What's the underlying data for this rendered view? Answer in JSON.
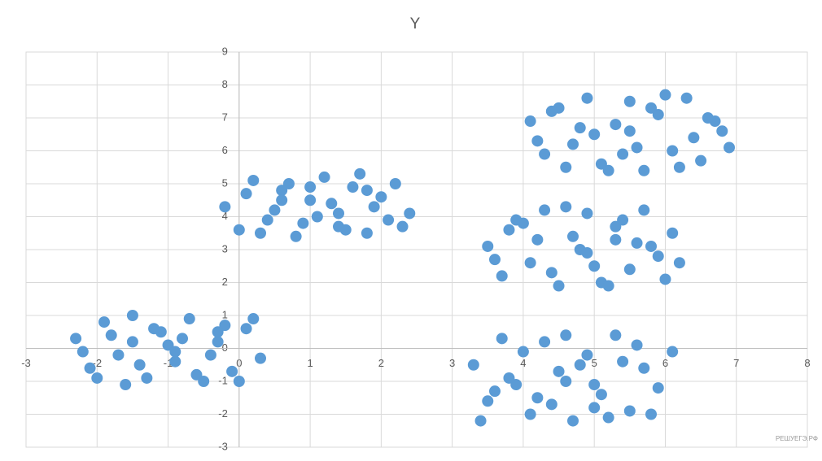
{
  "chart_data": {
    "type": "scatter",
    "title": "Y",
    "color": "#5b9bd5",
    "grid": true,
    "watermark": "РЕШУЕГЭ.РФ",
    "xlim": [
      -3,
      8
    ],
    "xticks": [
      -3,
      -2,
      -1,
      0,
      1,
      2,
      3,
      4,
      5,
      6,
      7,
      8
    ],
    "ylim": [
      -3,
      9
    ],
    "yticks": [
      -3,
      -2,
      -1,
      0,
      1,
      2,
      3,
      4,
      5,
      6,
      7,
      8,
      9
    ],
    "x": [
      -2.3,
      -2.1,
      -1.9,
      -1.7,
      -1.5,
      -1.3,
      -1.1,
      -0.9,
      -0.7,
      -0.5,
      -0.3,
      -0.1,
      0.1,
      0.3,
      -2.2,
      -1.8,
      -1.4,
      -1.0,
      -0.6,
      -0.2,
      0.2,
      -2.0,
      -1.6,
      -1.2,
      -0.8,
      -0.4,
      0.0,
      -1.5,
      -0.9,
      -0.3,
      -0.2,
      0.0,
      0.2,
      0.4,
      0.6,
      0.8,
      1.0,
      1.2,
      1.4,
      1.6,
      1.8,
      2.0,
      2.2,
      2.4,
      0.1,
      0.5,
      0.9,
      1.3,
      1.7,
      2.1,
      0.3,
      0.7,
      1.1,
      1.5,
      1.9,
      2.3,
      0.6,
      1.0,
      1.4,
      1.8,
      4.1,
      4.3,
      4.5,
      4.7,
      4.9,
      5.1,
      5.3,
      5.5,
      5.7,
      5.9,
      6.1,
      6.3,
      6.5,
      6.7,
      6.9,
      4.2,
      4.6,
      5.0,
      5.4,
      5.8,
      6.2,
      6.6,
      4.4,
      4.8,
      5.2,
      5.6,
      6.0,
      6.4,
      6.8,
      5.5,
      3.5,
      3.7,
      3.9,
      4.1,
      4.3,
      4.5,
      4.7,
      4.9,
      5.1,
      5.3,
      5.5,
      5.7,
      5.9,
      6.1,
      3.6,
      4.0,
      4.4,
      4.8,
      5.2,
      5.6,
      6.0,
      3.8,
      4.2,
      4.6,
      5.0,
      5.4,
      5.8,
      6.2,
      4.9,
      5.3,
      3.3,
      3.5,
      3.7,
      3.9,
      4.1,
      4.3,
      4.5,
      4.7,
      4.9,
      5.1,
      5.3,
      5.5,
      5.7,
      5.9,
      6.1,
      3.4,
      3.8,
      4.2,
      4.6,
      5.0,
      5.4,
      5.8,
      3.6,
      4.0,
      4.4,
      4.8,
      5.2,
      5.6,
      4.6,
      5.0
    ],
    "values": [
      0.3,
      -0.6,
      0.8,
      -0.2,
      1.0,
      -0.9,
      0.5,
      -0.4,
      0.9,
      -1.0,
      0.2,
      -0.7,
      0.6,
      -0.3,
      -0.1,
      0.4,
      -0.5,
      0.1,
      -0.8,
      0.7,
      0.9,
      -0.9,
      -1.1,
      0.6,
      0.3,
      -0.2,
      -1.0,
      0.2,
      -0.1,
      0.5,
      4.3,
      3.6,
      5.1,
      3.9,
      4.8,
      3.4,
      4.5,
      5.2,
      3.7,
      4.9,
      3.5,
      4.6,
      5.0,
      4.1,
      4.7,
      4.2,
      3.8,
      4.4,
      5.3,
      3.9,
      3.5,
      5.0,
      4.0,
      3.6,
      4.3,
      3.7,
      4.5,
      4.9,
      4.1,
      4.8,
      6.9,
      5.9,
      7.3,
      6.2,
      7.6,
      5.6,
      6.8,
      7.5,
      5.4,
      7.1,
      6.0,
      7.6,
      5.7,
      6.9,
      6.1,
      6.3,
      5.5,
      6.5,
      5.9,
      7.3,
      5.5,
      7.0,
      7.2,
      6.7,
      5.4,
      6.1,
      7.7,
      6.4,
      6.6,
      6.6,
      3.1,
      2.2,
      3.9,
      2.6,
      4.2,
      1.9,
      3.4,
      4.1,
      2.0,
      3.7,
      2.4,
      4.2,
      2.8,
      3.5,
      2.7,
      3.8,
      2.3,
      3.0,
      1.9,
      3.2,
      2.1,
      3.6,
      3.3,
      4.3,
      2.5,
      3.9,
      3.1,
      2.6,
      2.9,
      3.3,
      -0.5,
      -1.6,
      0.3,
      -1.1,
      -2.0,
      0.2,
      -0.7,
      -2.2,
      -0.2,
      -1.4,
      0.4,
      -1.9,
      -0.6,
      -1.2,
      -0.1,
      -2.2,
      -0.9,
      -1.5,
      0.4,
      -1.8,
      -0.4,
      -2.0,
      -1.3,
      -0.1,
      -1.7,
      -0.5,
      -2.1,
      0.1,
      -1.0,
      -1.1
    ]
  }
}
